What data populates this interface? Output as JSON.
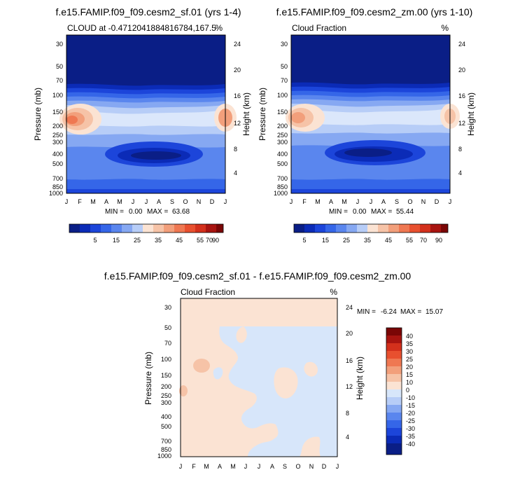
{
  "colors": {
    "deep_blue": "#0a1e86",
    "blue1": "#0b2bb7",
    "blue2": "#1c45da",
    "blue3": "#3566e8",
    "blue4": "#5a86ee",
    "blue5": "#86a8f2",
    "blue6": "#b7cdf7",
    "blue7": "#dbe7fb",
    "cream": "#fbe3d3",
    "salmon1": "#f6c3a7",
    "salmon2": "#f29f7b",
    "orange1": "#ef7852",
    "orange2": "#e8502f",
    "red1": "#d3301c",
    "red2": "#a81410",
    "dark_red": "#7a0606",
    "diff_pos": "#fbe3d3",
    "diff_neg": "#d7e6fa"
  },
  "chart_data": [
    {
      "type": "heatmap",
      "title": "f.e15.FAMIP.f09_f09.cesm2_sf.01 (yrs 1-4)",
      "subtitle_left": "CLOUD at -0.4712041884816784,167.5",
      "subtitle_right": "%",
      "xlabel": "",
      "ylabel": "Pressure (mb)",
      "ylabel_right": "Height (km)",
      "x_ticks": [
        "J",
        "F",
        "M",
        "A",
        "M",
        "J",
        "J",
        "A",
        "S",
        "O",
        "N",
        "D",
        "J"
      ],
      "y_ticks": [
        "30",
        "50",
        "70",
        "100",
        "150",
        "200",
        "250",
        "300",
        "400",
        "500",
        "700",
        "850",
        "1000"
      ],
      "y_ticks_right": [
        "24",
        "20",
        "16",
        "12",
        "8",
        "4"
      ],
      "min_label": "MIN =",
      "min_value": "0.00",
      "max_label": "MAX =",
      "max_value": "63.68",
      "colorbar_labels": [
        "5",
        "15",
        "25",
        "35",
        "45",
        "55",
        "70",
        "90"
      ],
      "field": "cloud_fraction",
      "peak_high_cloud": 63.68
    },
    {
      "type": "heatmap",
      "title": "f.e15.FAMIP.f09_f09.cesm2_zm.00 (yrs 1-10)",
      "subtitle_left": "Cloud Fraction",
      "subtitle_right": "%",
      "xlabel": "",
      "ylabel": "Pressure (mb)",
      "ylabel_right": "Height (km)",
      "x_ticks": [
        "J",
        "F",
        "M",
        "A",
        "M",
        "J",
        "J",
        "A",
        "S",
        "O",
        "N",
        "D",
        "J"
      ],
      "y_ticks": [
        "30",
        "50",
        "70",
        "100",
        "150",
        "200",
        "250",
        "300",
        "400",
        "500",
        "700",
        "850",
        "1000"
      ],
      "y_ticks_right": [
        "24",
        "20",
        "16",
        "12",
        "8",
        "4"
      ],
      "min_label": "MIN =",
      "min_value": "0.00",
      "max_label": "MAX =",
      "max_value": "55.44",
      "colorbar_labels": [
        "5",
        "15",
        "25",
        "35",
        "45",
        "55",
        "70",
        "90"
      ],
      "field": "cloud_fraction",
      "peak_high_cloud": 55.44
    },
    {
      "type": "heatmap",
      "title": "f.e15.FAMIP.f09_f09.cesm2_sf.01 - f.e15.FAMIP.f09_f09.cesm2_zm.00",
      "subtitle_left": "Cloud Fraction",
      "subtitle_right": "%",
      "xlabel": "",
      "ylabel": "Pressure (mb)",
      "ylabel_right": "Height (km)",
      "x_ticks": [
        "J",
        "F",
        "M",
        "A",
        "M",
        "J",
        "J",
        "A",
        "S",
        "O",
        "N",
        "D",
        "J"
      ],
      "y_ticks": [
        "30",
        "50",
        "70",
        "100",
        "150",
        "200",
        "250",
        "300",
        "400",
        "500",
        "700",
        "850",
        "1000"
      ],
      "y_ticks_right": [
        "24",
        "20",
        "16",
        "12",
        "8",
        "4"
      ],
      "min_label": "MIN =",
      "min_value": "-6.24",
      "max_label": "MAX =",
      "max_value": "15.07",
      "colorbar_labels": [
        "40",
        "35",
        "30",
        "25",
        "20",
        "15",
        "10",
        "0",
        "-10",
        "-15",
        "-20",
        "-25",
        "-30",
        "-35",
        "-40"
      ],
      "field": "difference"
    }
  ]
}
